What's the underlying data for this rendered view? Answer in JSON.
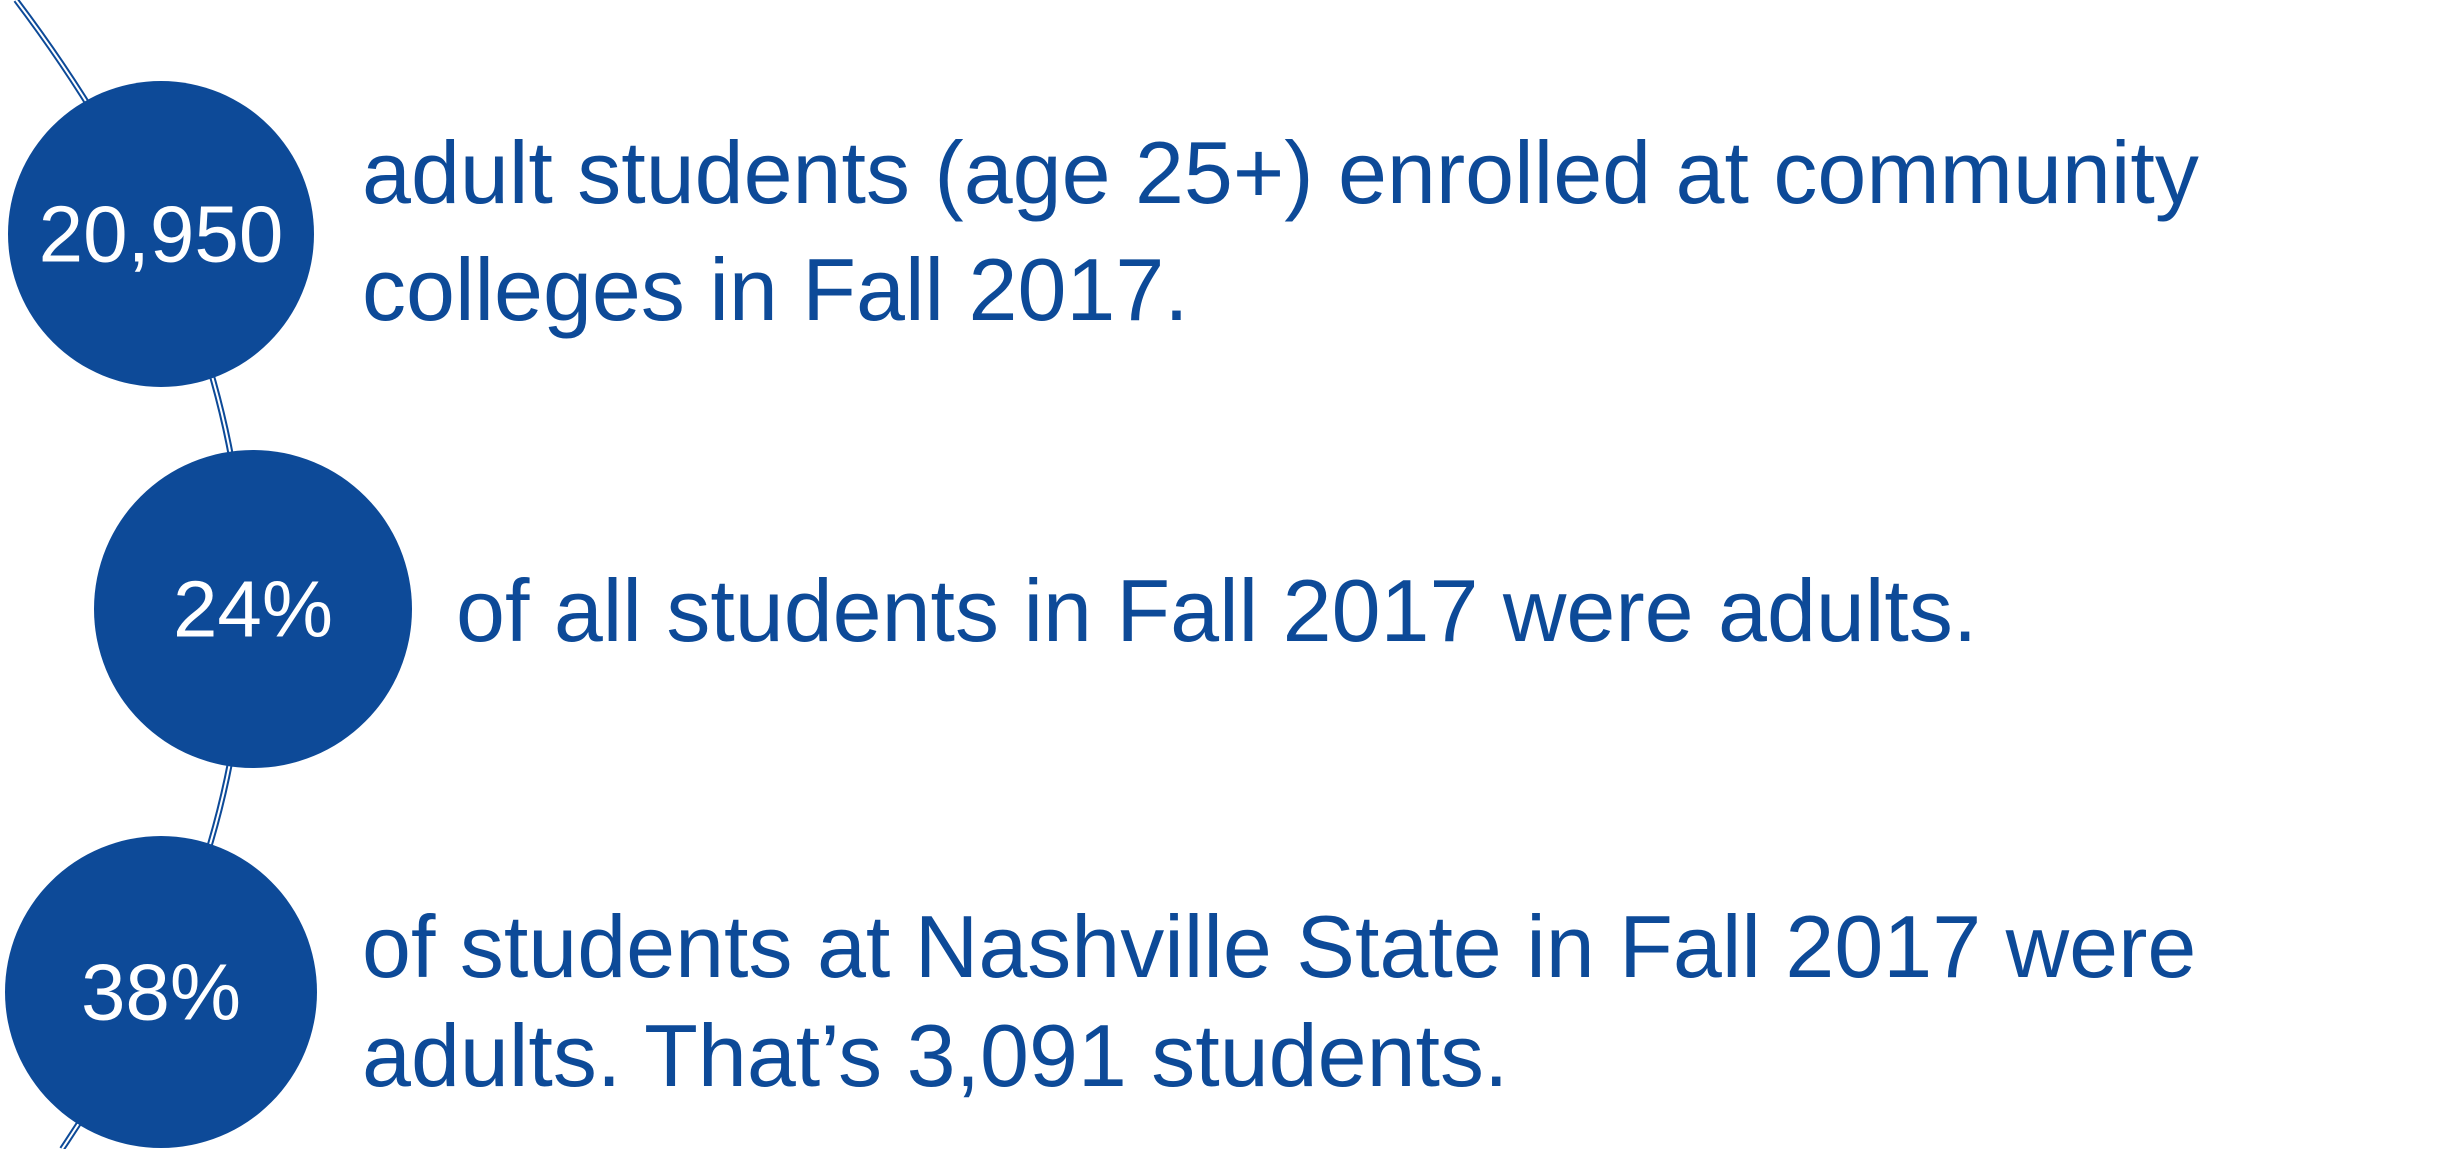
{
  "items": [
    {
      "value": "20,950",
      "lines": [
        "adult students (age 25+) enrolled at community",
        "colleges in Fall 2017."
      ]
    },
    {
      "value": "24%",
      "lines": [
        "of all students in Fall 2017 were adults."
      ]
    },
    {
      "value": "38%",
      "lines": [
        "of students at Nashville State in Fall 2017 were",
        "adults. That’s 3,091 students."
      ]
    }
  ]
}
